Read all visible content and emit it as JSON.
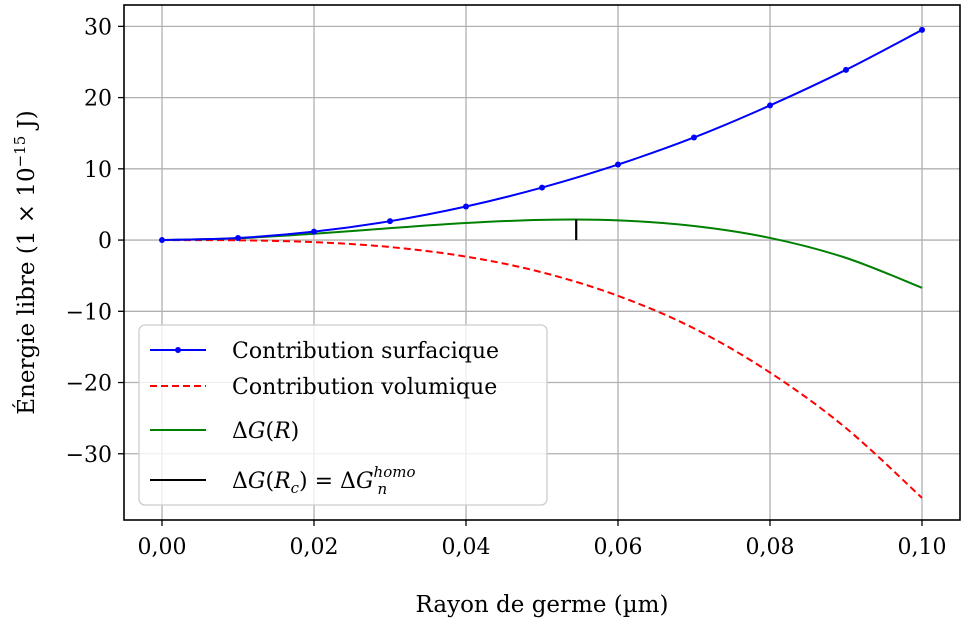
{
  "chart_data": {
    "type": "line",
    "xlabel": "Rayon de germe (µm)",
    "ylabel_main": "Énergie libre (1 × 10",
    "ylabel_exp": "−15",
    "ylabel_unit": " J)",
    "xlim": [
      -0.005,
      0.105
    ],
    "ylim": [
      -39.3,
      33.0
    ],
    "grid": true,
    "legend_position": "lower-left",
    "x_ticks": [
      0.0,
      0.02,
      0.04,
      0.06,
      0.08,
      0.1
    ],
    "x_tick_labels": [
      "0,00",
      "0,02",
      "0,04",
      "0,06",
      "0,08",
      "0,10"
    ],
    "y_ticks": [
      30,
      20,
      10,
      0,
      -10,
      -20,
      -30
    ],
    "y_tick_labels": [
      "30",
      "20",
      "10",
      "0",
      "−10",
      "−20",
      "−30"
    ],
    "x": [
      0.0,
      0.01,
      0.02,
      0.03,
      0.04,
      0.05,
      0.06,
      0.07,
      0.08,
      0.09,
      0.1
    ],
    "series": [
      {
        "name": "Contribution surfacique",
        "color": "#0000ff",
        "style": "solid-with-markers",
        "values": [
          0.0,
          0.29,
          1.18,
          2.65,
          4.71,
          7.37,
          10.6,
          14.4,
          18.9,
          23.9,
          29.5
        ]
      },
      {
        "name": "Contribution volumique",
        "color": "#ff0000",
        "style": "dashed",
        "values": [
          0.0,
          -0.036,
          -0.29,
          -0.98,
          -2.32,
          -4.53,
          -7.83,
          -12.4,
          -18.6,
          -26.4,
          -36.2
        ]
      },
      {
        "name": "ΔG(R)",
        "color": "#008000",
        "style": "solid",
        "values": [
          0.0,
          0.25,
          0.89,
          1.67,
          2.39,
          2.84,
          2.77,
          1.97,
          0.3,
          -2.5,
          -6.7
        ]
      }
    ],
    "marker": {
      "name": "ΔG(R_c) = ΔG_n^homo",
      "color": "#000000",
      "x": 0.0545,
      "y_from": 0.0,
      "y_to": 2.9
    },
    "legend": [
      {
        "label": "Contribution surfacique"
      },
      {
        "label": "Contribution volumique"
      },
      {
        "label_prefix": "Δ",
        "label_var": "G",
        "label_arg": "R"
      },
      {
        "label_prefix": "Δ",
        "label_var": "G",
        "label_arg": "R",
        "label_sub": "c",
        "label_eq": " = Δ",
        "label_rhs_var": "G",
        "label_rhs_sub": "n",
        "label_rhs_sup": "homo"
      }
    ]
  }
}
